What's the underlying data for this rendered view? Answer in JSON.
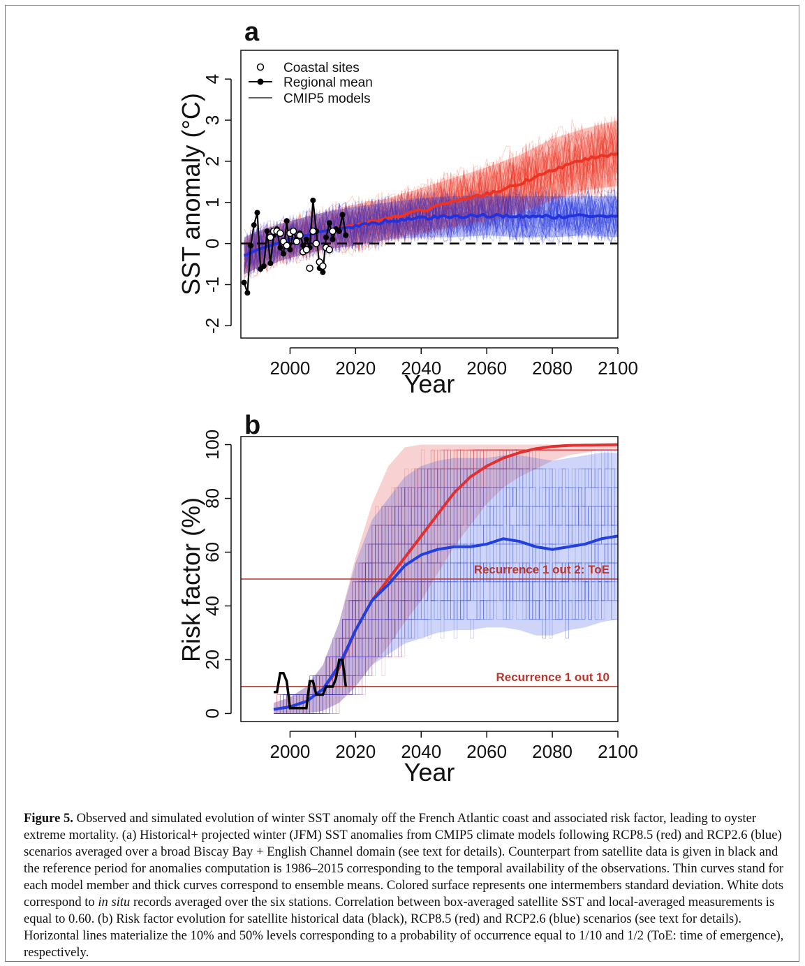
{
  "chart_data": [
    {
      "panel": "a",
      "type": "line",
      "xlabel": "Year",
      "ylabel": "SST anomaly (°C)",
      "xlim": [
        1985,
        2100
      ],
      "ylim": [
        -2.3,
        4.7
      ],
      "xticks": [
        2000,
        2020,
        2040,
        2060,
        2080,
        2100
      ],
      "yticks": [
        -2,
        -1,
        0,
        1,
        2,
        3,
        4
      ],
      "reference_line": 0,
      "legend": {
        "position": "top-left",
        "entries": [
          "Coastal sites",
          "Regional mean",
          "CMIP5 models"
        ]
      },
      "series": [
        {
          "name": "Regional mean",
          "color": "#000000",
          "x": [
            1986,
            1987,
            1988,
            1989,
            1990,
            1991,
            1992,
            1993,
            1994,
            1995,
            1996,
            1997,
            1998,
            1999,
            2000,
            2001,
            2002,
            2003,
            2004,
            2005,
            2006,
            2007,
            2008,
            2009,
            2010,
            2011,
            2012,
            2013,
            2014,
            2015,
            2016,
            2017
          ],
          "y": [
            -0.95,
            -1.2,
            -0.05,
            0.45,
            0.75,
            -0.62,
            -0.55,
            0.3,
            -0.48,
            0.2,
            0.35,
            -0.1,
            -0.25,
            0.55,
            -0.15,
            0.3,
            0.1,
            0.25,
            -0.05,
            0.1,
            -0.1,
            1.05,
            0.3,
            -0.6,
            -0.7,
            0.15,
            0.5,
            0.1,
            0.35,
            0.3,
            0.7,
            0.2
          ]
        },
        {
          "name": "Coastal sites",
          "color": "#ffffff",
          "x": [
            1994,
            1995,
            1996,
            1997,
            1998,
            1999,
            2000,
            2001,
            2002,
            2003,
            2004,
            2005,
            2006,
            2007,
            2008,
            2009,
            2010,
            2011,
            2012,
            2013
          ],
          "y": [
            0.15,
            0.3,
            0.3,
            0.25,
            0.05,
            -0.05,
            0.25,
            0.3,
            0.05,
            0.2,
            -0.2,
            -0.15,
            -0.6,
            0.3,
            0.0,
            -0.45,
            -0.55,
            -0.1,
            -0.15,
            0.3
          ]
        },
        {
          "name": "RCP8.5",
          "color": "#ee3322",
          "x": [
            1986,
            1990,
            2000,
            2010,
            2020,
            2030,
            2040,
            2050,
            2060,
            2070,
            2080,
            2090,
            2100
          ],
          "y": [
            -0.3,
            -0.15,
            0.1,
            0.3,
            0.45,
            0.6,
            0.8,
            1.0,
            1.2,
            1.45,
            1.8,
            2.05,
            2.2
          ]
        },
        {
          "name": "RCP2.6",
          "color": "#2233dd",
          "x": [
            1986,
            1990,
            2000,
            2010,
            2020,
            2030,
            2040,
            2050,
            2060,
            2070,
            2080,
            2090,
            2100
          ],
          "y": [
            -0.3,
            -0.15,
            0.1,
            0.3,
            0.42,
            0.55,
            0.62,
            0.65,
            0.68,
            0.66,
            0.65,
            0.68,
            0.65
          ]
        }
      ],
      "spread": {
        "RCP8.5": {
          "lower": [
            -0.75,
            -0.6,
            -0.35,
            -0.15,
            -0.05,
            0.1,
            0.25,
            0.4,
            0.55,
            0.75,
            1.05,
            1.3,
            1.4
          ],
          "upper": [
            0.15,
            0.3,
            0.55,
            0.75,
            0.95,
            1.1,
            1.35,
            1.6,
            1.85,
            2.15,
            2.55,
            2.8,
            3.0
          ]
        },
        "RCP2.6": {
          "lower": [
            -0.75,
            -0.6,
            -0.35,
            -0.15,
            -0.05,
            0.1,
            0.15,
            0.15,
            0.2,
            0.15,
            0.15,
            0.2,
            0.15
          ],
          "upper": [
            0.15,
            0.3,
            0.55,
            0.75,
            0.9,
            1.0,
            1.1,
            1.15,
            1.15,
            1.15,
            1.15,
            1.15,
            1.15
          ]
        }
      }
    },
    {
      "panel": "b",
      "type": "line",
      "xlabel": "Year",
      "ylabel": "Risk factor (%)",
      "xlim": [
        1985,
        2100
      ],
      "ylim": [
        -3,
        103
      ],
      "xticks": [
        2000,
        2020,
        2040,
        2060,
        2080,
        2100
      ],
      "yticks": [
        0,
        20,
        40,
        60,
        80,
        100
      ],
      "hlines": [
        {
          "y": 50,
          "label": "Recurrence 1 out 2: ToE"
        },
        {
          "y": 10,
          "label": "Recurrence 1 out 10"
        }
      ],
      "series": [
        {
          "name": "Satellite",
          "color": "#000000",
          "x": [
            1995,
            1996,
            1997,
            1998,
            1999,
            2000,
            2001,
            2002,
            2003,
            2004,
            2005,
            2006,
            2007,
            2008,
            2009,
            2010,
            2011,
            2012,
            2013,
            2014,
            2015,
            2016,
            2017
          ],
          "y": [
            8,
            8,
            15,
            15,
            12,
            2,
            2,
            2,
            2,
            2,
            2,
            12,
            12,
            7,
            7,
            7,
            10,
            10,
            10,
            13,
            20,
            20,
            10
          ]
        },
        {
          "name": "RCP8.5",
          "color": "#e03030",
          "x": [
            1995,
            2000,
            2005,
            2010,
            2015,
            2020,
            2025,
            2030,
            2035,
            2040,
            2045,
            2050,
            2055,
            2060,
            2065,
            2070,
            2075,
            2080,
            2085,
            2090,
            2095,
            2100
          ],
          "y": [
            1.5,
            2.5,
            4.5,
            9,
            17,
            31,
            42,
            50,
            58,
            66,
            74,
            82,
            88,
            92,
            95,
            97,
            98.5,
            99.3,
            99.7,
            99.8,
            99.9,
            100
          ]
        },
        {
          "name": "RCP2.6",
          "color": "#2040e0",
          "x": [
            1995,
            2000,
            2005,
            2010,
            2015,
            2020,
            2025,
            2030,
            2035,
            2040,
            2045,
            2050,
            2055,
            2060,
            2065,
            2070,
            2075,
            2080,
            2085,
            2090,
            2095,
            2100
          ],
          "y": [
            1.5,
            2.5,
            4.5,
            9,
            18,
            31,
            42,
            48,
            55,
            59,
            61,
            62,
            62,
            63,
            65,
            64,
            62,
            61,
            62,
            63,
            65,
            66
          ]
        }
      ],
      "spread": {
        "RCP8.5": {
          "x": [
            1995,
            2000,
            2005,
            2010,
            2015,
            2020,
            2025,
            2030,
            2035,
            2040,
            2045,
            2050,
            2055,
            2060,
            2065,
            2070,
            2075,
            2080,
            2085,
            2090,
            2095,
            2100
          ],
          "lower": [
            0,
            0,
            0,
            1,
            4,
            10,
            18,
            25,
            34,
            42,
            52,
            62,
            70,
            78,
            84,
            88,
            91,
            94,
            96,
            97,
            98,
            98
          ],
          "upper": [
            4,
            6,
            10,
            18,
            34,
            58,
            78,
            92,
            99,
            100,
            100,
            100,
            100,
            100,
            100,
            100,
            100,
            100,
            100,
            100,
            100,
            100
          ]
        },
        "RCP2.6": {
          "x": [
            1995,
            2000,
            2005,
            2010,
            2015,
            2020,
            2025,
            2030,
            2035,
            2040,
            2045,
            2050,
            2055,
            2060,
            2065,
            2070,
            2075,
            2080,
            2085,
            2090,
            2095,
            2100
          ],
          "lower": [
            0,
            0,
            0,
            1,
            4,
            10,
            18,
            22,
            26,
            28,
            30,
            31,
            31,
            32,
            32,
            31,
            29,
            29,
            31,
            32,
            34,
            35
          ],
          "upper": [
            4,
            6,
            10,
            18,
            34,
            56,
            72,
            80,
            88,
            92,
            94,
            95,
            95,
            95,
            96,
            96,
            95,
            94,
            95,
            96,
            97,
            97
          ]
        }
      }
    }
  ],
  "caption": {
    "label": "Figure 5.",
    "text_1": " Observed and simulated evolution of winter SST anomaly off the French Atlantic coast and associated risk factor, leading to oyster extreme mortality. (a) Historical+ projected winter (JFM) SST anomalies from CMIP5 climate models following RCP8.5 (red) and RCP2.6 (blue) scenarios averaged over a broad Biscay Bay + English Channel domain (see text for details). Counterpart from satellite data is given in black and the reference period for anomalies computation is 1986–2015 corresponding to the temporal availability of the observations. Thin curves stand for each model member and thick curves correspond to ensemble means. Colored surface represents one intermembers standard deviation. White dots correspond to ",
    "italic": "in situ",
    "text_2": " records averaged over the six stations. Correlation between box-averaged satellite SST and local-averaged measurements is equal to 0.60. (b) Risk factor evolution for satellite historical data (black), RCP8.5 (red) and RCP2.6 (blue) scenarios (see text for details). Horizontal lines materialize the 10% and 50% levels corresponding to a probability of occurrence equal to 1/10 and 1/2 (ToE: time of emergence), respectively."
  }
}
